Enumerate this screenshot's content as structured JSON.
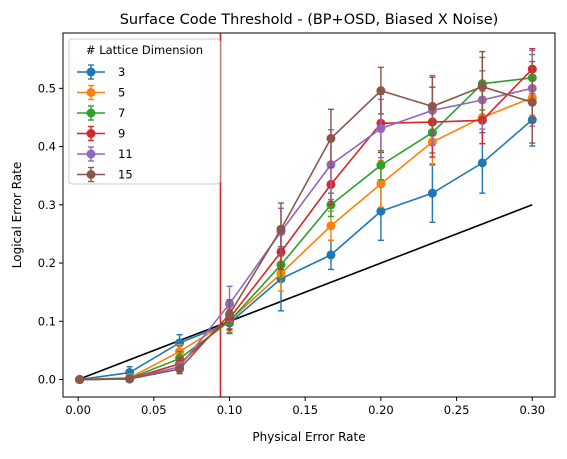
{
  "chart_data": {
    "type": "line",
    "title": "Surface Code Threshold - (BP+OSD, Biased X Noise)",
    "xlabel": "Physical Error Rate",
    "ylabel": "Logical Error Rate",
    "xlim": [
      -0.01,
      0.315
    ],
    "ylim": [
      -0.03,
      0.595
    ],
    "xticks": [
      0.0,
      0.05,
      0.1,
      0.15,
      0.2,
      0.25,
      0.3
    ],
    "xtick_labels": [
      "0.00",
      "0.05",
      "0.10",
      "0.15",
      "0.20",
      "0.25",
      "0.30"
    ],
    "yticks": [
      0.0,
      0.1,
      0.2,
      0.3,
      0.4,
      0.5
    ],
    "ytick_labels": [
      "0.0",
      "0.1",
      "0.2",
      "0.3",
      "0.4",
      "0.5"
    ],
    "grid": false,
    "legend": {
      "title": "# Lattice Dimension",
      "placement": "upper-left"
    },
    "threshold_line": {
      "x": 0.094,
      "color": "#d62728"
    },
    "reference_line": {
      "x": [
        0.001,
        0.3
      ],
      "y": [
        0.001,
        0.3
      ],
      "color": "#000000"
    },
    "x": [
      0.001,
      0.034,
      0.067,
      0.1,
      0.134,
      0.167,
      0.2,
      0.234,
      0.267,
      0.3
    ],
    "series": [
      {
        "name": "3",
        "color": "#1f77b4",
        "values": [
          0.0,
          0.012,
          0.063,
          0.097,
          0.173,
          0.214,
          0.289,
          0.32,
          0.372,
          0.446
        ],
        "errors": [
          0.002,
          0.01,
          0.014,
          0.018,
          0.055,
          0.025,
          0.05,
          0.05,
          0.052,
          0.045
        ]
      },
      {
        "name": "5",
        "color": "#ff7f0e",
        "values": [
          0.0,
          0.003,
          0.048,
          0.101,
          0.182,
          0.264,
          0.336,
          0.408,
          0.45,
          0.484
        ],
        "errors": [
          0.002,
          0.006,
          0.012,
          0.02,
          0.03,
          0.025,
          0.04,
          0.04,
          0.045,
          0.03
        ]
      },
      {
        "name": "7",
        "color": "#2ca02c",
        "values": [
          0.0,
          0.002,
          0.036,
          0.1,
          0.197,
          0.3,
          0.368,
          0.424,
          0.508,
          0.518
        ],
        "errors": [
          0.002,
          0.005,
          0.012,
          0.02,
          0.025,
          0.02,
          0.025,
          0.035,
          0.045,
          0.04
        ]
      },
      {
        "name": "9",
        "color": "#d62728",
        "values": [
          0.0,
          0.001,
          0.027,
          0.105,
          0.219,
          0.335,
          0.44,
          0.442,
          0.445,
          0.533
        ],
        "errors": [
          0.002,
          0.004,
          0.01,
          0.02,
          0.03,
          0.035,
          0.05,
          0.06,
          0.04,
          0.035
        ]
      },
      {
        "name": "11",
        "color": "#9467bd",
        "values": [
          0.0,
          0.001,
          0.022,
          0.13,
          0.254,
          0.369,
          0.431,
          0.462,
          0.48,
          0.5
        ],
        "errors": [
          0.002,
          0.003,
          0.008,
          0.03,
          0.04,
          0.06,
          0.05,
          0.06,
          0.05,
          0.065
        ]
      },
      {
        "name": "15",
        "color": "#8c564b",
        "values": [
          0.0,
          0.001,
          0.018,
          0.112,
          0.258,
          0.414,
          0.496,
          0.469,
          0.503,
          0.476
        ],
        "errors": [
          0.002,
          0.003,
          0.008,
          0.025,
          0.045,
          0.05,
          0.04,
          0.05,
          0.06,
          0.07
        ]
      }
    ]
  }
}
